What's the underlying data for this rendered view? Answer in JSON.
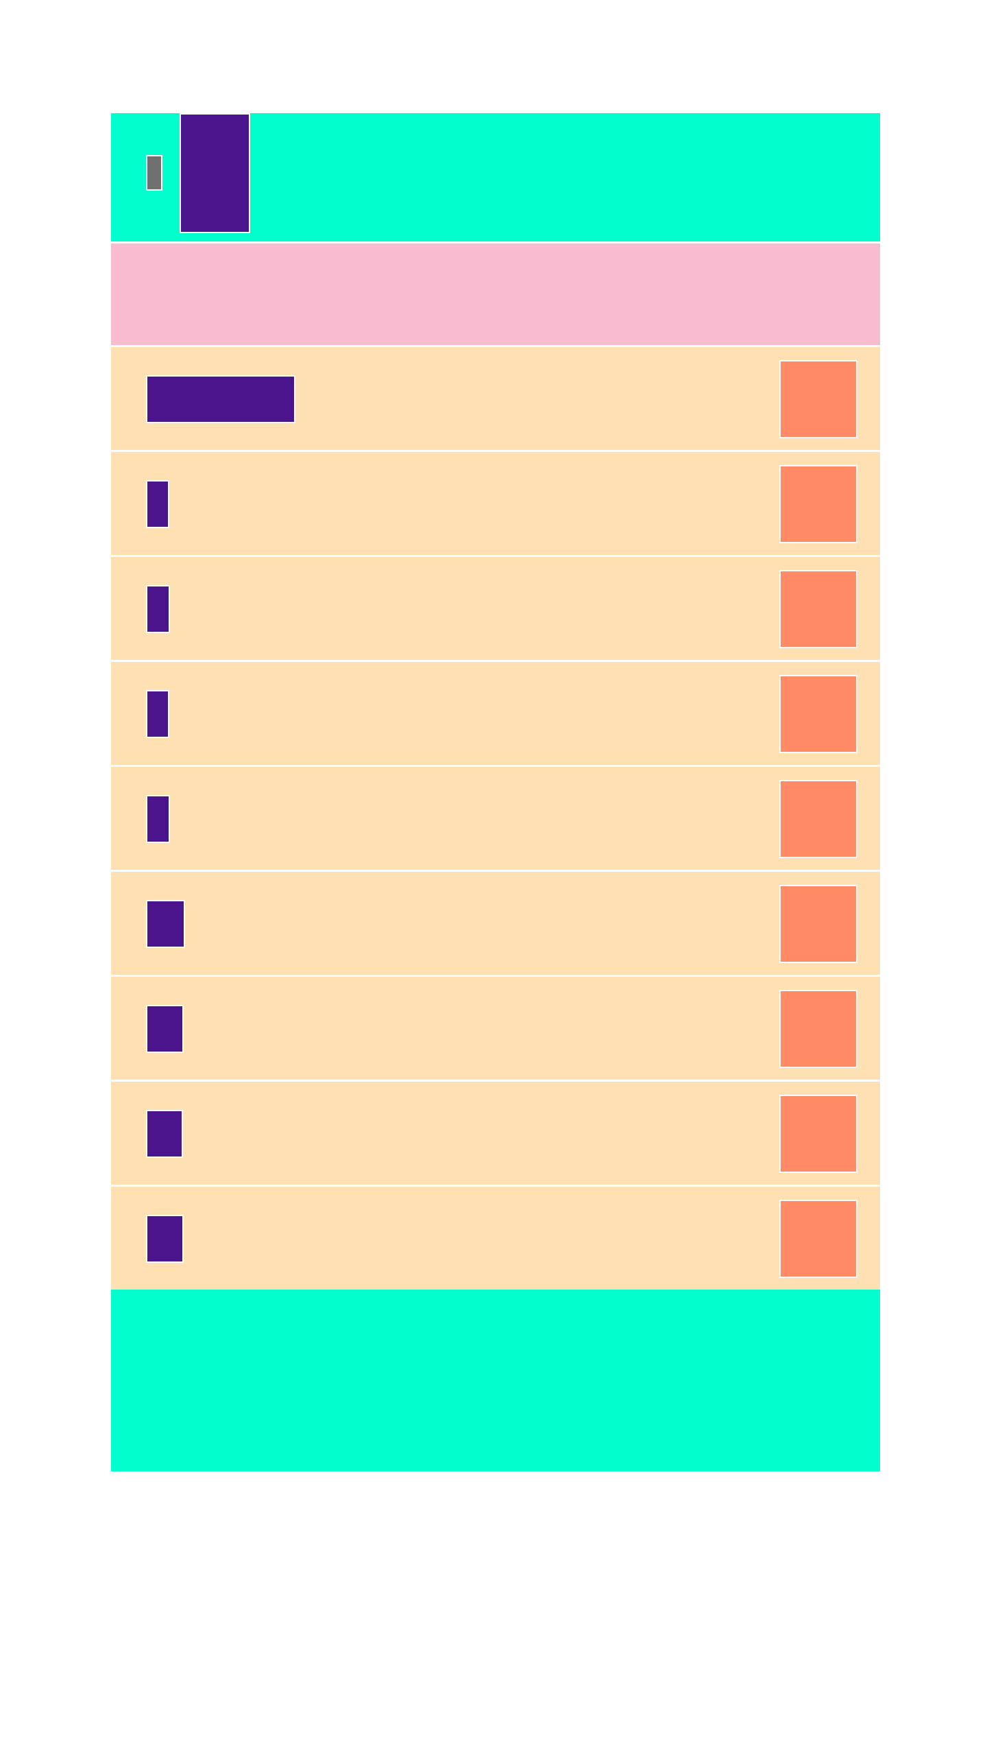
{
  "app": {
    "title": "",
    "back_label": ""
  },
  "banner": {
    "text": ""
  },
  "list": {
    "items": [
      {
        "label": "",
        "action": ""
      },
      {
        "label": "",
        "action": ""
      },
      {
        "label": "",
        "action": ""
      },
      {
        "label": "",
        "action": ""
      },
      {
        "label": "",
        "action": ""
      },
      {
        "label": "",
        "action": ""
      },
      {
        "label": "",
        "action": ""
      },
      {
        "label": "",
        "action": ""
      },
      {
        "label": "",
        "action": ""
      }
    ]
  },
  "footer": {
    "text": ""
  },
  "colors": {
    "header_bg": "#00ffcc",
    "banner_bg": "#f8bbd0",
    "row_bg": "#ffe0b2",
    "label_block": "#4a148c",
    "action_block": "#ff8a65",
    "back_block": "#707070"
  }
}
